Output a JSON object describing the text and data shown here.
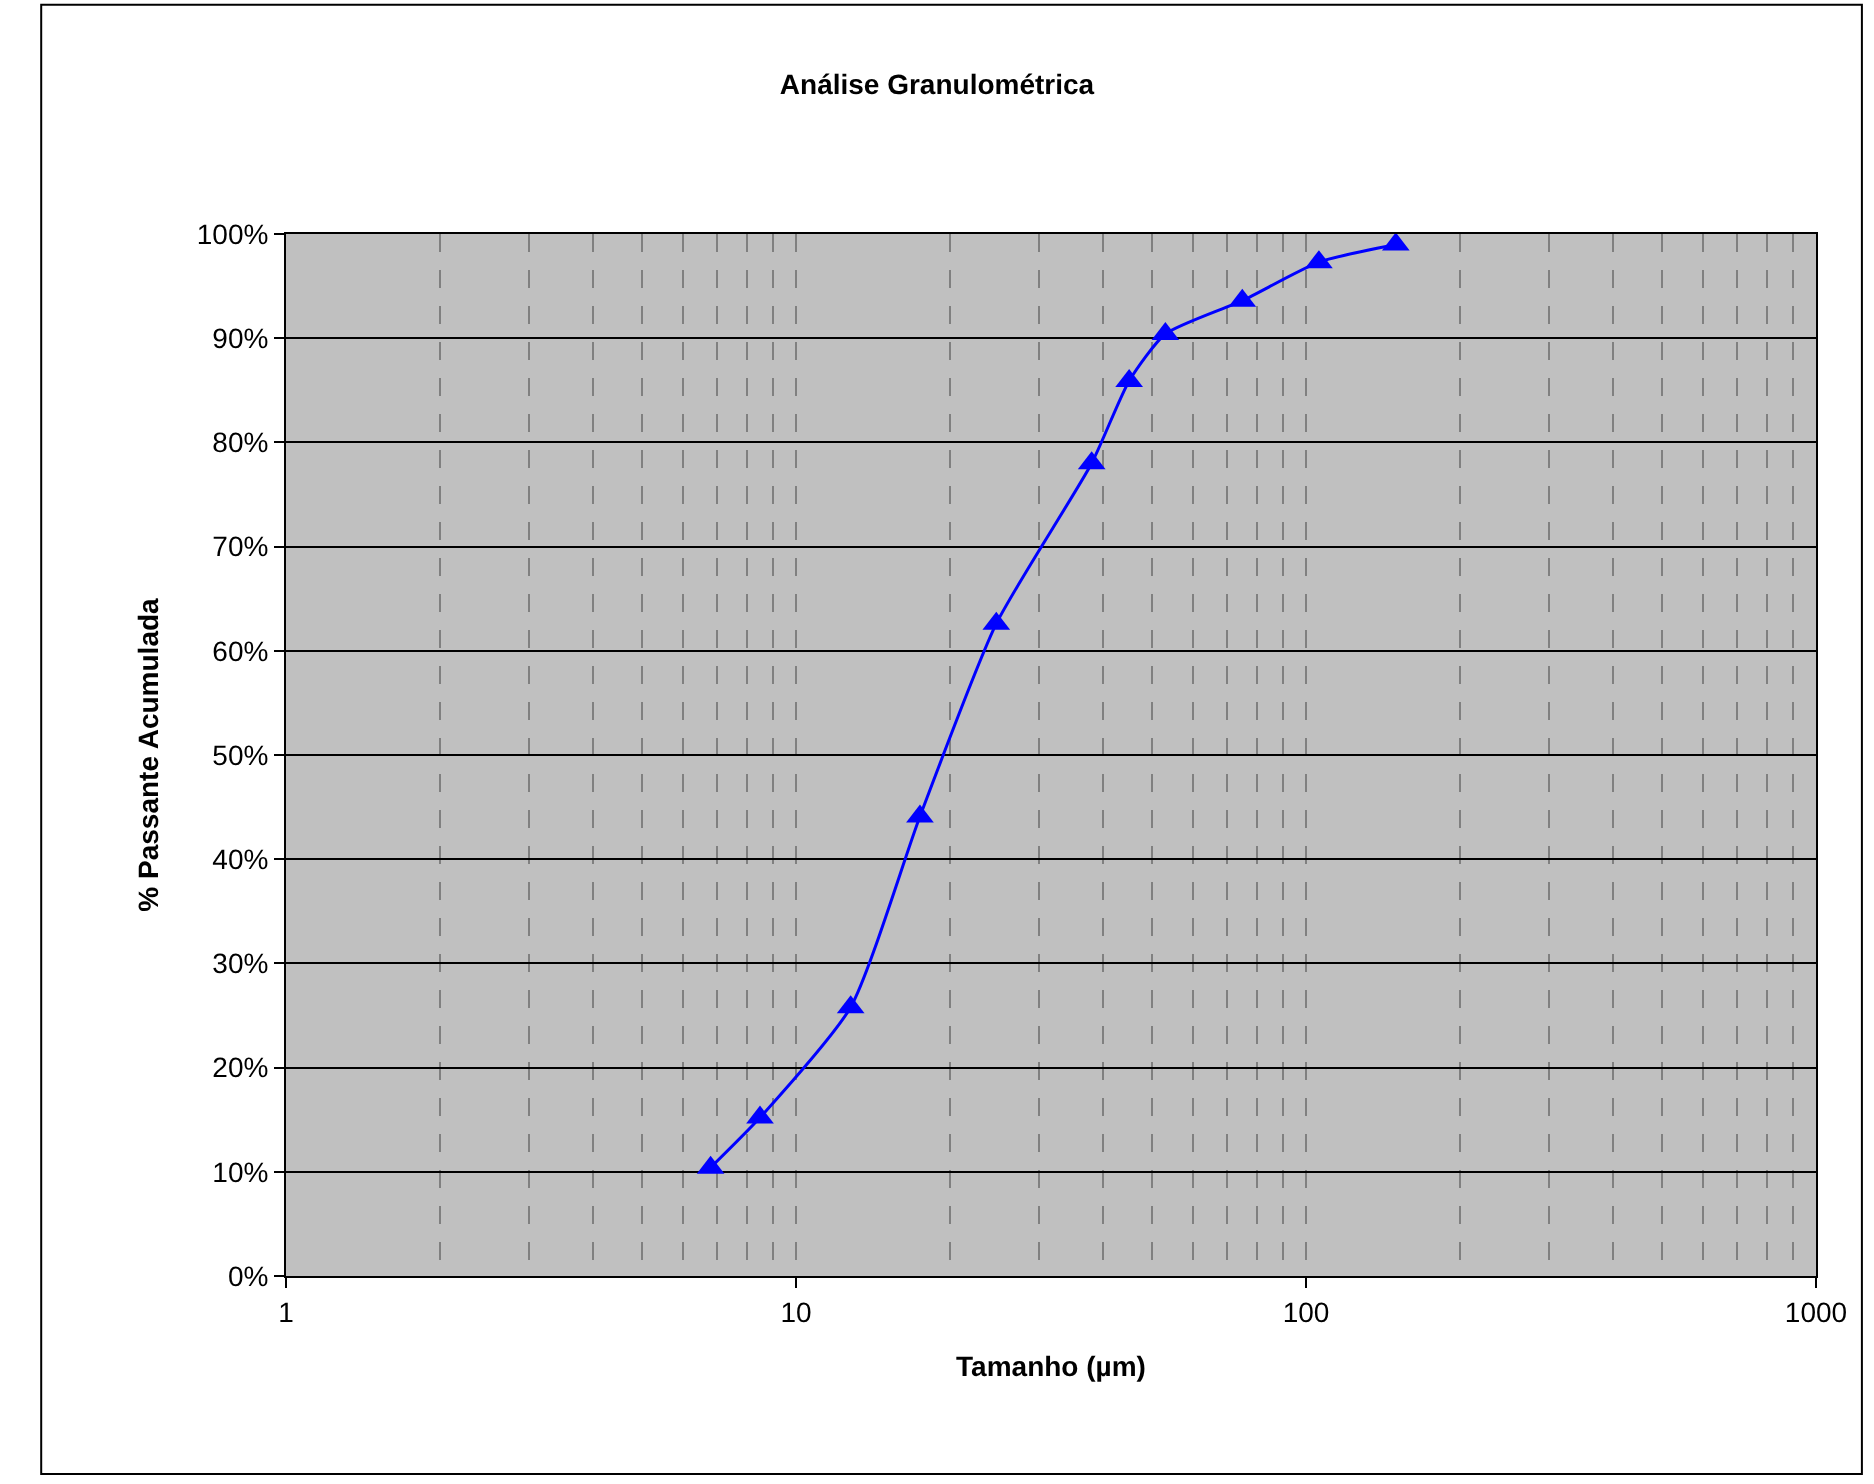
{
  "chart_data": {
    "type": "line",
    "title": "Análise Granulométrica",
    "xlabel": "Tamanho (µm)",
    "ylabel": "% Passante Acumulada",
    "x": [
      6.8,
      8.5,
      12.8,
      17.5,
      24.7,
      38,
      45,
      53,
      75,
      106,
      150
    ],
    "series": [
      {
        "color": "#0000ff",
        "values": [
          10.4,
          15.2,
          25.8,
          44.1,
          62.6,
          78.0,
          85.9,
          90.4,
          93.6,
          97.3,
          99.0
        ]
      }
    ],
    "log": "x",
    "xlim": [
      1,
      1000
    ],
    "xticks": [
      1,
      10,
      100,
      1000
    ],
    "ylim": [
      0,
      100
    ],
    "yticks": [
      {
        "value": 0,
        "label": "0%"
      },
      {
        "value": 10,
        "label": "10%"
      },
      {
        "value": 20,
        "label": "20%"
      },
      {
        "value": 30,
        "label": "30%"
      },
      {
        "value": 40,
        "label": "40%"
      },
      {
        "value": 50,
        "label": "50%"
      },
      {
        "value": 60,
        "label": "60%"
      },
      {
        "value": 70,
        "label": "70%"
      },
      {
        "value": 80,
        "label": "80%"
      },
      {
        "value": 90,
        "label": "90%"
      },
      {
        "value": 100,
        "label": "100%"
      }
    ],
    "grid": true,
    "marker": "triangle",
    "line_style": "solid"
  }
}
